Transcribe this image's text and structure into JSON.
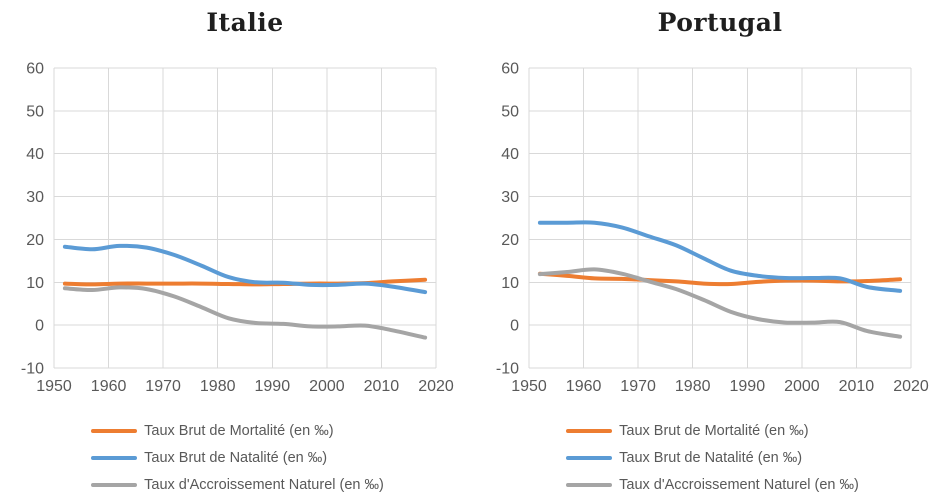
{
  "page": {
    "background": "#ffffff"
  },
  "colors": {
    "mortalite": "#ED7D31",
    "natalite": "#5B9BD5",
    "accroissement": "#A5A5A5",
    "grid": "#D9D9D9",
    "tick_text": "#595959",
    "title_text": "#1f1f1f"
  },
  "chart_data": [
    {
      "type": "line",
      "title": "Italie",
      "xlabel": "",
      "ylabel": "",
      "xlim": [
        1950,
        2020
      ],
      "ylim": [
        -10,
        60
      ],
      "x_ticks": [
        1950,
        1960,
        1970,
        1980,
        1990,
        2000,
        2010,
        2020
      ],
      "y_ticks": [
        60,
        50,
        40,
        30,
        20,
        10,
        0,
        -10
      ],
      "grid": true,
      "legend_position": "bottom",
      "x": [
        1952,
        1957,
        1962,
        1967,
        1972,
        1977,
        1982,
        1987,
        1992,
        1997,
        2002,
        2007,
        2012,
        2018
      ],
      "series": [
        {
          "name": "Taux Brut de Mortalité (en ‰)",
          "color_key": "mortalite",
          "values": [
            9.7,
            9.5,
            9.7,
            9.7,
            9.7,
            9.7,
            9.6,
            9.5,
            9.6,
            9.7,
            9.7,
            9.8,
            10.2,
            10.6
          ]
        },
        {
          "name": "Taux Brut de Natalité (en ‰)",
          "color_key": "natalite",
          "values": [
            18.3,
            17.7,
            18.5,
            18.1,
            16.4,
            13.9,
            11.2,
            10.0,
            9.9,
            9.4,
            9.4,
            9.7,
            9.0,
            7.7
          ]
        },
        {
          "name": "Taux d'Accroissement Naturel (en ‰)",
          "color_key": "accroissement",
          "values": [
            8.6,
            8.2,
            8.8,
            8.4,
            6.7,
            4.2,
            1.6,
            0.5,
            0.3,
            -0.3,
            -0.3,
            -0.1,
            -1.2,
            -2.9
          ]
        }
      ]
    },
    {
      "type": "line",
      "title": "Portugal",
      "xlabel": "",
      "ylabel": "",
      "xlim": [
        1950,
        2020
      ],
      "ylim": [
        -10,
        60
      ],
      "x_ticks": [
        1950,
        1960,
        1970,
        1980,
        1990,
        2000,
        2010,
        2020
      ],
      "y_ticks": [
        60,
        50,
        40,
        30,
        20,
        10,
        0,
        -10
      ],
      "grid": true,
      "legend_position": "bottom",
      "x": [
        1952,
        1957,
        1962,
        1967,
        1972,
        1977,
        1982,
        1987,
        1992,
        1997,
        2002,
        2007,
        2012,
        2018
      ],
      "series": [
        {
          "name": "Taux Brut de Mortalité (en ‰)",
          "color_key": "mortalite",
          "values": [
            12.0,
            11.5,
            10.9,
            10.8,
            10.5,
            10.2,
            9.7,
            9.6,
            10.1,
            10.4,
            10.4,
            10.2,
            10.3,
            10.7
          ]
        },
        {
          "name": "Taux Brut de Natalité (en ‰)",
          "color_key": "natalite",
          "values": [
            23.9,
            23.9,
            23.9,
            22.8,
            20.7,
            18.6,
            15.6,
            12.7,
            11.5,
            11.0,
            11.0,
            10.9,
            8.9,
            8.0
          ]
        },
        {
          "name": "Taux d'Accroissement Naturel (en ‰)",
          "color_key": "accroissement",
          "values": [
            11.9,
            12.4,
            13.0,
            12.0,
            10.2,
            8.4,
            5.9,
            3.1,
            1.4,
            0.6,
            0.6,
            0.7,
            -1.4,
            -2.7
          ]
        }
      ]
    }
  ]
}
